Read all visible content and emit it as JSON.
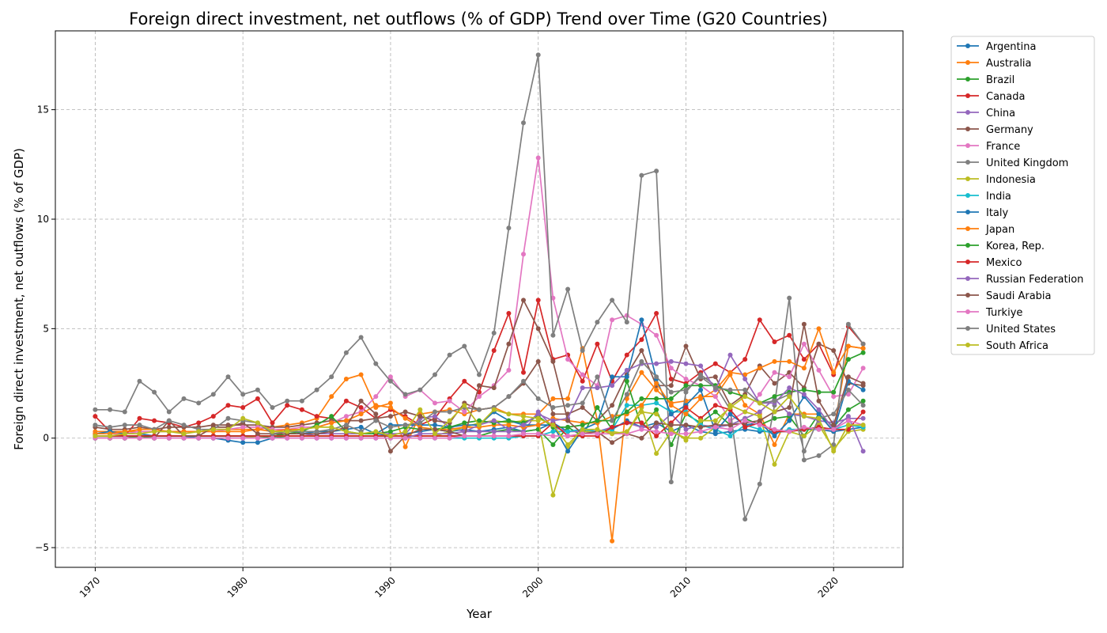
{
  "chart_data": {
    "type": "line",
    "title": "Foreign direct investment, net outflows (% of GDP) Trend over Time (G20 Countries)",
    "xlabel": "Year",
    "ylabel": "Foreign direct investment, net outflows (% of GDP)",
    "xlim": [
      1967.3,
      2024.7
    ],
    "ylim": [
      -5.9,
      18.6
    ],
    "xticks": [
      1970,
      1980,
      1990,
      2000,
      2010,
      2020
    ],
    "yticks": [
      -5,
      0,
      5,
      10,
      15
    ],
    "ytick_labels": [
      "−5",
      "0",
      "5",
      "10",
      "15"
    ],
    "grid": true,
    "legend_position": "outside-right",
    "x": [
      1970,
      1971,
      1972,
      1973,
      1974,
      1975,
      1976,
      1977,
      1978,
      1979,
      1980,
      1981,
      1982,
      1983,
      1984,
      1985,
      1986,
      1987,
      1988,
      1989,
      1990,
      1991,
      1992,
      1993,
      1994,
      1995,
      1996,
      1997,
      1998,
      1999,
      2000,
      2001,
      2002,
      2003,
      2004,
      2005,
      2006,
      2007,
      2008,
      2009,
      2010,
      2011,
      2012,
      2013,
      2014,
      2015,
      2016,
      2017,
      2018,
      2019,
      2020,
      2021,
      2022
    ],
    "series": [
      {
        "name": "Argentina",
        "color": "#1f77b4",
        "values": [
          0.1,
          0.1,
          0.1,
          0.1,
          0.1,
          0.1,
          0.1,
          0.1,
          0.1,
          0.1,
          0.1,
          0.1,
          0.1,
          0.1,
          0.1,
          0.1,
          0.1,
          0.1,
          0.1,
          0.1,
          0.2,
          0.2,
          0.3,
          0.4,
          0.3,
          0.4,
          0.3,
          0.4,
          0.5,
          0.3,
          0.4,
          0.7,
          0.3,
          0.4,
          0.3,
          0.4,
          0.8,
          0.5,
          0.7,
          0.3,
          0.6,
          0.3,
          0.2,
          0.3,
          0.4,
          0.3,
          0.3,
          0.3,
          0.4,
          0.4,
          0.3,
          0.4,
          0.5
        ]
      },
      {
        "name": "Australia",
        "color": "#ff7f0e",
        "values": [
          0.3,
          0.3,
          0.3,
          0.3,
          0.3,
          0.3,
          0.3,
          0.3,
          0.4,
          0.4,
          0.4,
          0.4,
          0.5,
          0.6,
          0.7,
          0.9,
          1.9,
          2.7,
          2.9,
          1.4,
          1.6,
          -0.4,
          1.1,
          1.2,
          1.3,
          1.1,
          1.3,
          1.4,
          1.1,
          1.1,
          1.1,
          1.8,
          1.8,
          4.1,
          0.8,
          -4.7,
          1.8,
          3.0,
          2.2,
          1.6,
          1.7,
          1.9,
          1.9,
          2.9,
          1.5,
          1.1,
          -0.3,
          1.1,
          1.1,
          1.1,
          0.3,
          4.2,
          4.1
        ]
      },
      {
        "name": "Brazil",
        "color": "#2ca02c",
        "values": [
          0.0,
          0.0,
          0.0,
          0.1,
          0.1,
          0.1,
          0.1,
          0.1,
          0.1,
          0.1,
          0.1,
          0.1,
          0.0,
          0.1,
          0.1,
          0.1,
          0.1,
          0.1,
          0.1,
          0.1,
          0.1,
          0.1,
          0.1,
          0.1,
          0.1,
          0.1,
          0.1,
          0.3,
          0.4,
          0.3,
          0.4,
          -0.3,
          0.5,
          0.1,
          1.4,
          0.4,
          2.6,
          0.5,
          1.3,
          -0.3,
          1.1,
          0.7,
          1.2,
          0.6,
          0.9,
          0.6,
          0.9,
          1.0,
          0.1,
          1.1,
          0.5,
          1.3,
          1.7
        ]
      },
      {
        "name": "Canada",
        "color": "#d62728",
        "values": [
          1.0,
          0.3,
          0.1,
          0.9,
          0.8,
          0.7,
          0.5,
          0.7,
          1.0,
          1.5,
          1.4,
          1.8,
          0.7,
          1.5,
          1.3,
          1.0,
          0.9,
          1.7,
          1.4,
          0.9,
          1.3,
          1.0,
          0.6,
          0.9,
          1.8,
          2.6,
          2.1,
          4.0,
          5.7,
          3.0,
          6.3,
          3.6,
          3.8,
          2.6,
          4.3,
          2.6,
          3.8,
          4.5,
          5.7,
          2.7,
          2.5,
          3.0,
          3.4,
          3.0,
          3.6,
          5.4,
          4.4,
          4.7,
          3.6,
          4.3,
          2.9,
          5.1,
          4.3
        ]
      },
      {
        "name": "China",
        "color": "#9467bd",
        "values": [
          0.0,
          0.0,
          0.0,
          0.0,
          0.0,
          0.0,
          0.0,
          0.0,
          0.0,
          0.0,
          0.0,
          0.1,
          0.1,
          0.1,
          0.1,
          0.2,
          0.2,
          0.2,
          0.2,
          0.2,
          0.2,
          0.2,
          0.9,
          1.0,
          0.5,
          0.3,
          0.3,
          0.3,
          0.3,
          0.3,
          1.2,
          0.5,
          0.3,
          0.3,
          0.3,
          0.5,
          0.7,
          0.5,
          0.5,
          1.1,
          0.4,
          0.6,
          0.5,
          0.6,
          0.9,
          1.2,
          1.8,
          1.1,
          1.0,
          0.8,
          0.7,
          0.9,
          0.9
        ]
      },
      {
        "name": "Germany",
        "color": "#8c564b",
        "values": [
          0.5,
          0.4,
          0.4,
          0.5,
          0.4,
          0.5,
          0.5,
          0.5,
          0.6,
          0.6,
          0.6,
          0.6,
          0.5,
          0.5,
          0.6,
          0.7,
          0.8,
          0.8,
          0.8,
          0.9,
          1.0,
          1.2,
          1.0,
          0.8,
          0.7,
          1.6,
          1.3,
          1.4,
          1.9,
          2.5,
          3.5,
          1.1,
          1.1,
          1.4,
          0.8,
          1.5,
          2.9,
          4.0,
          2.4,
          2.4,
          4.2,
          2.7,
          2.8,
          1.5,
          2.0,
          3.3,
          2.5,
          3.0,
          2.3,
          4.3,
          4.0,
          2.5,
          2.4
        ]
      },
      {
        "name": "France",
        "color": "#e377c2",
        "values": [
          0.2,
          0.2,
          0.2,
          0.3,
          0.3,
          0.3,
          0.3,
          0.3,
          0.3,
          0.4,
          0.5,
          0.5,
          0.4,
          0.4,
          0.5,
          0.5,
          0.7,
          1.0,
          1.2,
          1.9,
          2.8,
          1.9,
          2.2,
          1.6,
          1.7,
          1.2,
          1.9,
          2.4,
          3.1,
          8.4,
          12.8,
          6.4,
          3.6,
          2.9,
          2.4,
          5.4,
          5.6,
          5.2,
          4.7,
          3.2,
          2.7,
          2.4,
          1.9,
          0.8,
          1.2,
          2.0,
          3.0,
          2.8,
          4.3,
          3.1,
          1.9,
          2.0,
          3.2
        ]
      },
      {
        "name": "United Kingdom",
        "color": "#7f7f7f",
        "values": [
          1.3,
          1.3,
          1.2,
          2.6,
          2.1,
          1.2,
          1.8,
          1.6,
          2.0,
          2.8,
          2.0,
          2.2,
          1.4,
          1.7,
          1.7,
          2.2,
          2.8,
          3.9,
          4.6,
          3.4,
          2.6,
          2.0,
          2.2,
          2.9,
          3.8,
          4.2,
          2.9,
          4.8,
          9.6,
          14.4,
          17.5,
          4.7,
          6.8,
          4.0,
          5.3,
          6.3,
          5.3,
          12.0,
          12.2,
          -2.0,
          2.1,
          2.9,
          2.4,
          1.3,
          -3.7,
          -2.1,
          1.5,
          6.4,
          -1.0,
          -0.8,
          -0.3,
          5.2,
          4.3
        ]
      },
      {
        "name": "Indonesia",
        "color": "#bcbd22",
        "values": [
          0.0,
          0.0,
          0.0,
          0.0,
          0.0,
          0.0,
          0.0,
          0.0,
          0.0,
          0.0,
          0.0,
          0.1,
          0.1,
          0.1,
          0.1,
          0.1,
          0.1,
          0.1,
          0.1,
          0.1,
          0.1,
          0.1,
          0.1,
          0.1,
          0.3,
          0.5,
          0.7,
          0.8,
          0.7,
          0.8,
          0.8,
          -2.6,
          -0.4,
          0.3,
          0.3,
          0.3,
          0.2,
          1.4,
          -0.7,
          0.3,
          0.0,
          0.0,
          0.5,
          1.5,
          1.2,
          1.0,
          -1.2,
          0.3,
          0.1,
          0.6,
          -0.5,
          0.3,
          0.4
        ]
      },
      {
        "name": "India",
        "color": "#17becf",
        "values": [
          0.0,
          0.0,
          0.0,
          0.0,
          0.0,
          0.0,
          0.0,
          0.0,
          0.0,
          0.0,
          0.0,
          0.0,
          0.0,
          0.0,
          0.0,
          0.0,
          0.0,
          0.0,
          0.0,
          0.0,
          0.0,
          0.0,
          0.0,
          0.0,
          0.0,
          0.0,
          0.0,
          0.0,
          0.0,
          0.1,
          0.1,
          0.3,
          0.3,
          0.4,
          0.3,
          0.4,
          1.5,
          1.5,
          1.6,
          1.2,
          1.2,
          0.6,
          0.4,
          0.1,
          0.6,
          0.4,
          0.2,
          0.4,
          0.4,
          0.5,
          0.4,
          0.6,
          0.5
        ]
      },
      {
        "name": "Italy",
        "color": "#1f77b4",
        "values": [
          0.2,
          0.3,
          0.2,
          0.2,
          0.1,
          0.1,
          0.1,
          0.0,
          0.0,
          -0.1,
          -0.2,
          -0.2,
          0.0,
          0.4,
          0.2,
          0.3,
          0.3,
          0.4,
          0.5,
          0.2,
          0.6,
          0.6,
          0.6,
          0.6,
          0.5,
          0.6,
          0.6,
          1.2,
          0.8,
          0.6,
          0.6,
          0.6,
          -0.6,
          0.4,
          0.7,
          2.8,
          2.8,
          5.4,
          2.7,
          1.1,
          1.5,
          2.2,
          0.3,
          1.1,
          0.6,
          0.7,
          0.1,
          0.8,
          1.9,
          1.1,
          0.3,
          2.6,
          2.2
        ]
      },
      {
        "name": "Japan",
        "color": "#ff7f0e",
        "values": [
          0.2,
          0.2,
          0.3,
          0.4,
          0.4,
          0.3,
          0.3,
          0.3,
          0.3,
          0.3,
          0.3,
          0.4,
          0.3,
          0.4,
          0.4,
          0.5,
          0.7,
          0.8,
          1.1,
          1.5,
          1.4,
          0.9,
          0.5,
          0.4,
          0.4,
          0.5,
          0.5,
          0.6,
          0.6,
          0.5,
          0.6,
          0.9,
          0.8,
          0.7,
          0.7,
          1.0,
          1.1,
          1.5,
          2.5,
          1.5,
          1.1,
          1.8,
          2.2,
          3.0,
          2.9,
          3.2,
          3.5,
          3.5,
          3.2,
          5.0,
          3.0,
          4.2,
          4.1
        ]
      },
      {
        "name": "Korea, Rep.",
        "color": "#2ca02c",
        "values": [
          0.0,
          0.0,
          0.0,
          0.0,
          0.1,
          0.1,
          0.1,
          0.1,
          0.1,
          0.1,
          0.1,
          0.1,
          0.1,
          0.2,
          0.3,
          0.6,
          1.0,
          0.3,
          0.2,
          0.2,
          0.3,
          0.5,
          0.4,
          0.4,
          0.5,
          0.7,
          0.8,
          0.7,
          0.8,
          0.7,
          1.0,
          0.5,
          0.5,
          0.6,
          0.8,
          0.8,
          1.2,
          1.8,
          1.8,
          1.8,
          2.4,
          2.4,
          2.4,
          2.1,
          1.9,
          1.6,
          1.9,
          2.1,
          2.2,
          2.1,
          2.1,
          3.6,
          3.9
        ]
      },
      {
        "name": "Mexico",
        "color": "#d62728",
        "values": [
          0.1,
          0.1,
          0.1,
          0.1,
          0.1,
          0.1,
          0.1,
          0.1,
          0.1,
          0.1,
          0.1,
          0.1,
          0.1,
          0.1,
          0.1,
          0.1,
          0.1,
          0.1,
          0.1,
          0.1,
          0.1,
          0.1,
          0.1,
          0.1,
          0.1,
          0.1,
          0.1,
          0.1,
          0.1,
          0.1,
          0.1,
          0.7,
          0.1,
          0.1,
          0.1,
          0.5,
          0.7,
          0.7,
          0.1,
          0.7,
          1.4,
          0.9,
          1.5,
          1.3,
          0.5,
          0.7,
          0.3,
          0.3,
          0.4,
          0.5,
          0.4,
          0.4,
          1.2
        ]
      },
      {
        "name": "Russian Federation",
        "color": "#9467bd",
        "values": [
          0.0,
          0.0,
          0.0,
          0.0,
          0.0,
          0.0,
          0.0,
          0.0,
          0.0,
          0.0,
          0.0,
          0.0,
          0.0,
          0.0,
          0.0,
          0.0,
          0.0,
          0.0,
          0.0,
          0.0,
          0.0,
          0.0,
          0.2,
          0.2,
          0.2,
          0.3,
          0.6,
          0.8,
          0.4,
          0.6,
          1.1,
          0.8,
          0.9,
          2.3,
          2.3,
          2.4,
          3.1,
          3.4,
          3.4,
          3.5,
          3.4,
          3.3,
          2.2,
          3.8,
          2.7,
          1.6,
          1.6,
          2.3,
          2.0,
          1.3,
          0.4,
          1.0,
          -0.6
        ]
      },
      {
        "name": "Saudi Arabia",
        "color": "#8c564b",
        "values": [
          0.0,
          0.0,
          0.0,
          0.0,
          0.0,
          0.8,
          0.1,
          0.1,
          0.5,
          0.5,
          0.7,
          0.2,
          0.2,
          0.2,
          0.2,
          0.2,
          0.3,
          0.5,
          1.7,
          1.1,
          -0.6,
          0.1,
          0.4,
          0.4,
          0.3,
          0.1,
          2.4,
          2.3,
          4.3,
          6.3,
          5.0,
          3.5,
          0.8,
          0.2,
          0.3,
          -0.2,
          0.2,
          0.0,
          0.7,
          0.6,
          0.6,
          0.5,
          0.6,
          0.6,
          0.7,
          0.8,
          1.2,
          1.4,
          5.2,
          1.7,
          0.6,
          2.8,
          2.5
        ]
      },
      {
        "name": "Turkiye",
        "color": "#e377c2",
        "values": [
          0.0,
          0.0,
          0.0,
          0.0,
          0.0,
          0.0,
          0.0,
          0.0,
          0.0,
          0.0,
          0.0,
          0.0,
          0.0,
          0.0,
          0.0,
          0.0,
          0.0,
          0.0,
          0.0,
          0.0,
          0.0,
          0.0,
          0.0,
          0.0,
          0.0,
          0.1,
          0.1,
          0.1,
          0.1,
          0.2,
          0.2,
          0.1,
          0.1,
          0.2,
          0.2,
          0.2,
          0.2,
          0.4,
          0.3,
          0.2,
          0.2,
          0.3,
          0.5,
          0.4,
          0.8,
          0.6,
          0.4,
          0.3,
          0.5,
          0.4,
          0.4,
          0.8,
          0.6
        ]
      },
      {
        "name": "United States",
        "color": "#7f7f7f",
        "values": [
          0.6,
          0.5,
          0.6,
          0.6,
          0.4,
          0.8,
          0.6,
          0.4,
          0.4,
          0.9,
          0.8,
          0.7,
          0.2,
          0.3,
          0.3,
          0.3,
          0.4,
          0.6,
          0.3,
          0.8,
          0.5,
          0.6,
          0.7,
          1.2,
          1.2,
          1.4,
          1.3,
          1.4,
          1.9,
          2.6,
          1.8,
          1.4,
          1.5,
          1.6,
          2.8,
          0.8,
          2.0,
          3.5,
          2.8,
          2.1,
          2.2,
          2.8,
          2.3,
          2.2,
          2.2,
          1.6,
          1.7,
          2.0,
          -0.6,
          0.9,
          1.1,
          2.2,
          1.5
        ]
      },
      {
        "name": "South Africa",
        "color": "#bcbd22",
        "values": [
          0.1,
          0.1,
          0.2,
          0.2,
          0.3,
          0.3,
          0.2,
          0.3,
          0.4,
          0.4,
          0.9,
          0.7,
          0.3,
          0.3,
          0.4,
          0.5,
          0.5,
          0.3,
          0.2,
          0.3,
          0.1,
          0.3,
          1.3,
          0.2,
          0.8,
          1.5,
          0.6,
          1.3,
          1.1,
          1.0,
          0.9,
          0.6,
          -0.3,
          0.4,
          0.4,
          0.2,
          0.3,
          1.2,
          1.1,
          0.4,
          -0.1,
          0.8,
          0.8,
          1.4,
          1.9,
          1.6,
          1.2,
          1.9,
          1.0,
          0.9,
          -0.6,
          0.6,
          0.6
        ]
      }
    ]
  }
}
